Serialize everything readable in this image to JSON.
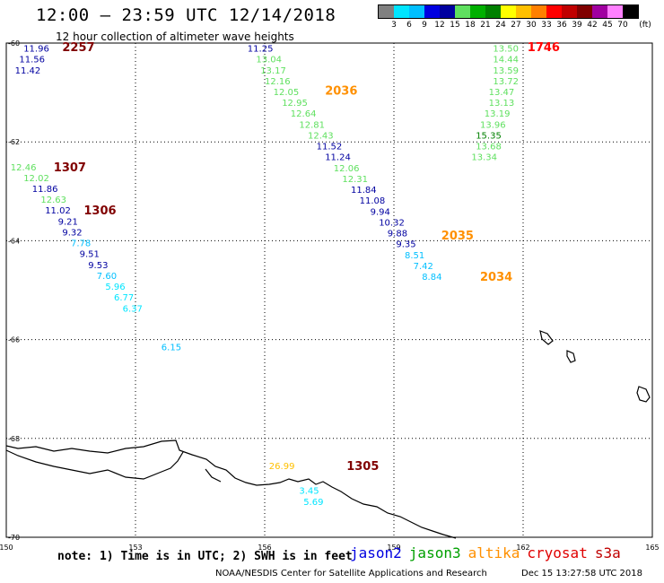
{
  "header": {
    "title": "12:00 – 23:59 UTC 12/14/2018",
    "subtitle": "12 hour collection of altimeter wave heights"
  },
  "legend": {
    "labels": [
      "3",
      "6",
      "9",
      "12",
      "15",
      "18",
      "21",
      "24",
      "27",
      "30",
      "33",
      "36",
      "39",
      "42",
      "45",
      "70"
    ],
    "unit": "(ft)",
    "colors": [
      "#808080",
      "#00e5ff",
      "#00bfff",
      "#0000e0",
      "#0000a0",
      "#5fe05f",
      "#00b000",
      "#008000",
      "#ffff00",
      "#ffc000",
      "#ff8000",
      "#ff0000",
      "#c00000",
      "#800000",
      "#a000a0",
      "#ff80ff",
      "#000000"
    ]
  },
  "map": {
    "lon_ticks": [
      "150",
      "153",
      "156",
      "159",
      "162",
      "165"
    ],
    "lat_ticks": [
      "-60",
      "-62",
      "-64",
      "-66",
      "-68",
      "-70"
    ],
    "lon_range": [
      150,
      165
    ],
    "lat_range": [
      -60,
      -70
    ]
  },
  "passes": [
    {
      "label": "2257",
      "color": "#800000",
      "lon": 151.3,
      "lat": -60.07,
      "values": [
        {
          "v": "11.96",
          "lon": 150.4,
          "lat": -60.1,
          "c": "#0000a0"
        },
        {
          "v": "11.56",
          "lon": 150.3,
          "lat": -60.32,
          "c": "#0000a0"
        },
        {
          "v": "11.42",
          "lon": 150.2,
          "lat": -60.54,
          "c": "#0000a0"
        }
      ]
    },
    {
      "label": "2036",
      "color": "#ff9000",
      "lon": 157.4,
      "lat": -60.95,
      "values": [
        {
          "v": "11.25",
          "lon": 155.6,
          "lat": -60.1,
          "c": "#0000a0"
        },
        {
          "v": "13.04",
          "lon": 155.8,
          "lat": -60.32,
          "c": "#5fe05f"
        },
        {
          "v": "13.17",
          "lon": 155.9,
          "lat": -60.54,
          "c": "#5fe05f"
        },
        {
          "v": "12.16",
          "lon": 156.0,
          "lat": -60.76,
          "c": "#5fe05f"
        },
        {
          "v": "12.05",
          "lon": 156.2,
          "lat": -60.98,
          "c": "#5fe05f"
        },
        {
          "v": "12.95",
          "lon": 156.4,
          "lat": -61.2,
          "c": "#5fe05f"
        },
        {
          "v": "12.64",
          "lon": 156.6,
          "lat": -61.42,
          "c": "#5fe05f"
        },
        {
          "v": "12.81",
          "lon": 156.8,
          "lat": -61.64,
          "c": "#5fe05f"
        },
        {
          "v": "12.43",
          "lon": 157.0,
          "lat": -61.86,
          "c": "#5fe05f"
        },
        {
          "v": "11.52",
          "lon": 157.2,
          "lat": -62.08,
          "c": "#0000a0"
        },
        {
          "v": "11.24",
          "lon": 157.4,
          "lat": -62.3,
          "c": "#0000a0"
        },
        {
          "v": "12.06",
          "lon": 157.6,
          "lat": -62.52,
          "c": "#5fe05f"
        },
        {
          "v": "12.31",
          "lon": 157.8,
          "lat": -62.74,
          "c": "#5fe05f"
        },
        {
          "v": "11.84",
          "lon": 158.0,
          "lat": -62.96,
          "c": "#0000a0"
        },
        {
          "v": "11.08",
          "lon": 158.2,
          "lat": -63.18,
          "c": "#0000a0"
        },
        {
          "v": "9.94",
          "lon": 158.45,
          "lat": -63.4,
          "c": "#0000a0"
        },
        {
          "v": "10.32",
          "lon": 158.65,
          "lat": -63.62,
          "c": "#0000a0"
        }
      ]
    },
    {
      "label": "2035",
      "color": "#ff9000",
      "lon": 160.1,
      "lat": -63.88,
      "values": [
        {
          "v": "9.88",
          "lon": 158.85,
          "lat": -63.84,
          "c": "#0000a0"
        },
        {
          "v": "9.35",
          "lon": 159.05,
          "lat": -64.06,
          "c": "#0000a0"
        },
        {
          "v": "8.51",
          "lon": 159.25,
          "lat": -64.28,
          "c": "#00bfff"
        },
        {
          "v": "7.42",
          "lon": 159.45,
          "lat": -64.5,
          "c": "#00bfff"
        }
      ]
    },
    {
      "label": "2034",
      "color": "#ff9000",
      "lon": 161.0,
      "lat": -64.72,
      "values": [
        {
          "v": "8.84",
          "lon": 159.65,
          "lat": -64.72,
          "c": "#00bfff"
        }
      ]
    },
    {
      "label": "1746",
      "color": "#ff0000",
      "lon": 162.1,
      "lat": -60.07,
      "values": [
        {
          "v": "13.50",
          "lon": 161.3,
          "lat": -60.1,
          "c": "#5fe05f"
        },
        {
          "v": "14.44",
          "lon": 161.3,
          "lat": -60.32,
          "c": "#5fe05f"
        },
        {
          "v": "13.59",
          "lon": 161.3,
          "lat": -60.54,
          "c": "#5fe05f"
        },
        {
          "v": "13.72",
          "lon": 161.3,
          "lat": -60.76,
          "c": "#5fe05f"
        },
        {
          "v": "13.47",
          "lon": 161.2,
          "lat": -60.98,
          "c": "#5fe05f"
        },
        {
          "v": "13.13",
          "lon": 161.2,
          "lat": -61.2,
          "c": "#5fe05f"
        },
        {
          "v": "13.19",
          "lon": 161.1,
          "lat": -61.42,
          "c": "#5fe05f"
        },
        {
          "v": "13.96",
          "lon": 161.0,
          "lat": -61.64,
          "c": "#5fe05f"
        },
        {
          "v": "15.35",
          "lon": 160.9,
          "lat": -61.86,
          "c": "#008000"
        },
        {
          "v": "13.68",
          "lon": 160.9,
          "lat": -62.08,
          "c": "#5fe05f"
        },
        {
          "v": "13.34",
          "lon": 160.8,
          "lat": -62.3,
          "c": "#5fe05f"
        }
      ]
    },
    {
      "label": "1307",
      "color": "#800000",
      "lon": 151.1,
      "lat": -62.5,
      "values": [
        {
          "v": "12.46",
          "lon": 150.1,
          "lat": -62.5,
          "c": "#5fe05f"
        },
        {
          "v": "12.02",
          "lon": 150.4,
          "lat": -62.72,
          "c": "#5fe05f"
        },
        {
          "v": "11.86",
          "lon": 150.6,
          "lat": -62.94,
          "c": "#0000a0"
        },
        {
          "v": "12.63",
          "lon": 150.8,
          "lat": -63.16,
          "c": "#5fe05f"
        }
      ]
    },
    {
      "label": "1306",
      "color": "#800000",
      "lon": 151.8,
      "lat": -63.38,
      "values": [
        {
          "v": "11.02",
          "lon": 150.9,
          "lat": -63.38,
          "c": "#0000a0"
        },
        {
          "v": "9.21",
          "lon": 151.2,
          "lat": -63.6,
          "c": "#0000a0"
        },
        {
          "v": "9.32",
          "lon": 151.3,
          "lat": -63.82,
          "c": "#0000a0"
        },
        {
          "v": "7.78",
          "lon": 151.5,
          "lat": -64.04,
          "c": "#00bfff"
        },
        {
          "v": "9.51",
          "lon": 151.7,
          "lat": -64.26,
          "c": "#0000a0"
        },
        {
          "v": "9.53",
          "lon": 151.9,
          "lat": -64.48,
          "c": "#0000a0"
        },
        {
          "v": "7.60",
          "lon": 152.1,
          "lat": -64.7,
          "c": "#00bfff"
        },
        {
          "v": "5.96",
          "lon": 152.3,
          "lat": -64.92,
          "c": "#00e5ff"
        },
        {
          "v": "6.77",
          "lon": 152.5,
          "lat": -65.14,
          "c": "#00e5ff"
        },
        {
          "v": "6.37",
          "lon": 152.7,
          "lat": -65.36,
          "c": "#00e5ff"
        },
        {
          "v": "6.15",
          "lon": 153.6,
          "lat": -66.14,
          "c": "#00bfff"
        }
      ]
    },
    {
      "label": "1305",
      "color": "#800000",
      "lon": 157.9,
      "lat": -68.55,
      "values": [
        {
          "v": "26.99",
          "lon": 156.1,
          "lat": -68.55,
          "c": "#ffc000"
        },
        {
          "v": "3.45",
          "lon": 156.8,
          "lat": -69.05,
          "c": "#00e5ff"
        },
        {
          "v": "5.69",
          "lon": 156.9,
          "lat": -69.27,
          "c": "#00e5ff"
        }
      ]
    }
  ],
  "footer": {
    "note": "note: 1) Time is in UTC; 2) SWH is in feet",
    "satellites": [
      {
        "name": "jason2",
        "color": "#0000e0"
      },
      {
        "name": "jason3",
        "color": "#00a000"
      },
      {
        "name": "altika",
        "color": "#ff9000"
      },
      {
        "name": "cryosat",
        "color": "#e00000"
      },
      {
        "name": "s3a",
        "color": "#c00000"
      }
    ],
    "credit": "NOAA/NESDIS Center for Satellite Applications and Research",
    "timestamp": "Dec 15 13:27:58 UTC 2018"
  }
}
